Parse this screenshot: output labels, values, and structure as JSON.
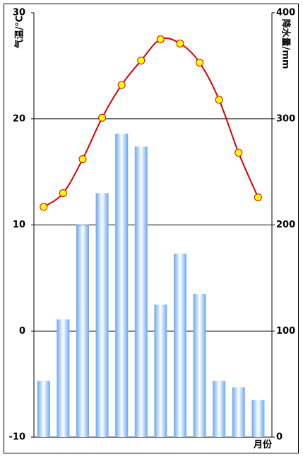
{
  "chart_data": {
    "type": "combo",
    "categories": [
      null,
      null,
      null,
      null,
      null,
      null,
      null,
      null,
      null,
      null,
      null,
      null
    ],
    "x_label": "月份",
    "y_label": "气温/℃",
    "y2_label": "降水量/mm",
    "ylim": [
      -10,
      30
    ],
    "yticks": [
      -10,
      0,
      10,
      20,
      30
    ],
    "y2lim": [
      0,
      400
    ],
    "y2ticks": [
      0,
      100,
      200,
      300,
      400
    ],
    "grid": true,
    "series": [
      {
        "type": "bar",
        "axis": "y2",
        "color": "#6aa8f0",
        "values": [
          53,
          111,
          200,
          230,
          286,
          274,
          125,
          173,
          135,
          53,
          47,
          35
        ]
      },
      {
        "type": "line",
        "axis": "y",
        "color": "#dd0000",
        "marker_color": "#ffff00",
        "values": [
          11.7,
          13.0,
          16.2,
          20.1,
          23.2,
          25.5,
          27.5,
          27.1,
          25.3,
          21.8,
          16.8,
          12.6
        ]
      }
    ]
  }
}
